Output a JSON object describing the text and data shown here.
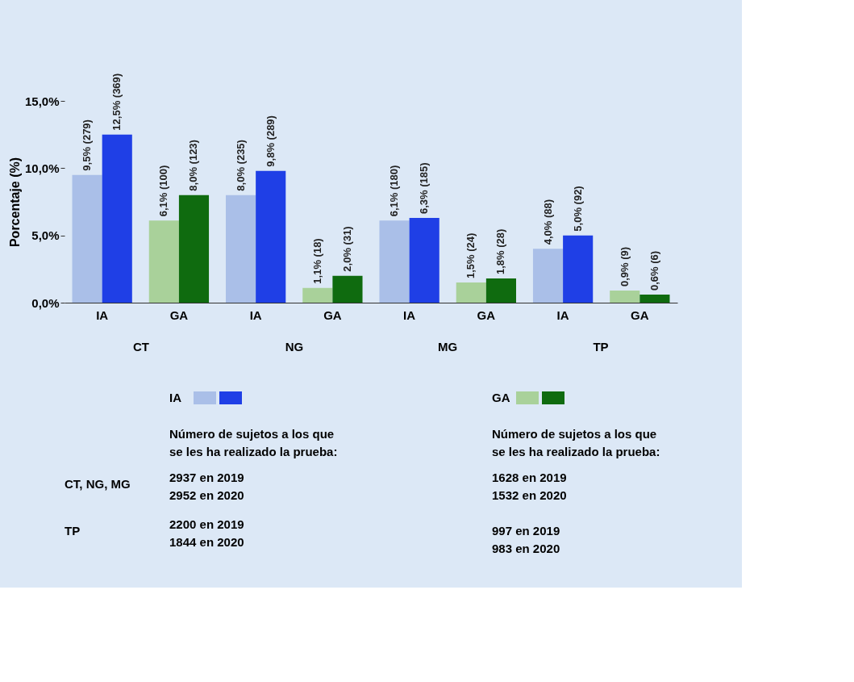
{
  "chart_data": {
    "type": "bar",
    "ylabel": "Porcentaje (%)",
    "categories": [
      "IA",
      "GA",
      "IA",
      "GA",
      "IA",
      "GA",
      "IA",
      "GA"
    ],
    "series": [
      {
        "name": "IA",
        "color": "#aabfe8",
        "values": [
          9.5,
          null,
          8.0,
          null,
          6.1,
          null,
          4.0,
          null
        ],
        "value_labels": [
          "9,5% (279)",
          null,
          "8,0% (235)",
          null,
          "6,1% (180)",
          null,
          "4,0% (88)",
          null
        ]
      },
      {
        "color": "#1f3fe6",
        "values": [
          12.5,
          null,
          9.8,
          null,
          6.3,
          null,
          5.0,
          null
        ],
        "value_labels": [
          "12,5% (369)",
          null,
          "9,8% (289)",
          null,
          "6,3% (185)",
          null,
          "5,0% (92)",
          null
        ]
      },
      {
        "name": "GA",
        "color": "#a9d19a",
        "values": [
          null,
          6.1,
          null,
          1.1,
          null,
          1.5,
          null,
          0.9
        ],
        "value_labels": [
          null,
          "6,1% (100)",
          null,
          "1,1% (18)",
          null,
          "1,5% (24)",
          null,
          "0,9% (9)"
        ]
      },
      {
        "color": "#0f6b0f",
        "values": [
          null,
          8.0,
          null,
          2.0,
          null,
          1.8,
          null,
          0.6
        ],
        "value_labels": [
          null,
          "8,0% (123)",
          null,
          "2,0% (31)",
          null,
          "1,8% (28)",
          null,
          "0,6% (6)"
        ]
      }
    ],
    "ylim": [
      0,
      15
    ],
    "yticks": [
      {
        "value": 0,
        "label": "0,0%"
      },
      {
        "value": 5,
        "label": "5,0%"
      },
      {
        "value": 10,
        "label": "10,0%"
      },
      {
        "value": 15,
        "label": "15,0%"
      }
    ],
    "grid": false,
    "legend": "bottom",
    "annotations": [
      "CT",
      "NG",
      "MG",
      "TP",
      "Número de sujetos a los que",
      "se les ha realizado la prueba:",
      "Número de sujetos a los que",
      "se les ha realizado la prueba:",
      "CT, NG, MG",
      "2937 en 2019",
      "2952 en 2020",
      "1628 en 2019",
      "1532 en 2020",
      "TP",
      "2200 en 2019",
      "1844 en 2020",
      "997 en 2019",
      "983 en 2020"
    ]
  }
}
